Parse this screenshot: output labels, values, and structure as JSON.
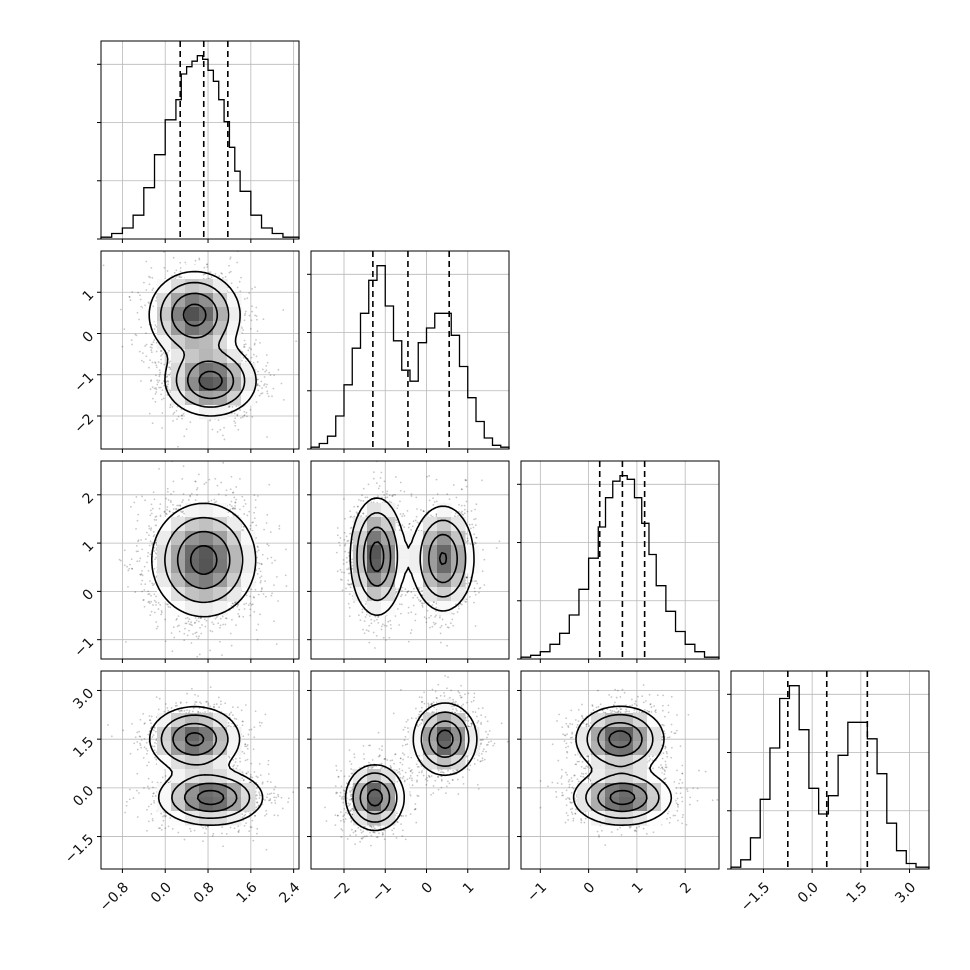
{
  "chart_data": {
    "type": "corner",
    "grid": true,
    "params": [
      {
        "range": [
          -1.2,
          2.5
        ],
        "ticks": [
          -0.8,
          0.0,
          0.8,
          1.6,
          2.4
        ],
        "tick_labels": [
          "−0.8",
          "0.0",
          "0.8",
          "1.6",
          "2.4"
        ],
        "quantiles": [
          0.28,
          0.72,
          1.17
        ],
        "hist": {
          "edges": [
            -1.2,
            -1.0,
            -0.8,
            -0.6,
            -0.4,
            -0.2,
            0.0,
            0.2,
            0.3,
            0.4,
            0.5,
            0.6,
            0.7,
            0.8,
            0.9,
            1.0,
            1.1,
            1.2,
            1.3,
            1.4,
            1.6,
            1.8,
            2.0,
            2.2,
            2.5
          ],
          "values": [
            0.01,
            0.03,
            0.06,
            0.13,
            0.28,
            0.46,
            0.65,
            0.76,
            0.9,
            0.94,
            0.97,
            1.0,
            0.98,
            0.92,
            0.86,
            0.76,
            0.64,
            0.5,
            0.37,
            0.26,
            0.13,
            0.06,
            0.03,
            0.01
          ]
        }
      },
      {
        "range": [
          -2.8,
          2.0
        ],
        "ticks": [
          -2,
          -1,
          0,
          1
        ],
        "tick_labels": [
          "−2",
          "−1",
          "0",
          "1"
        ],
        "quantiles": [
          -1.3,
          -0.45,
          0.55
        ],
        "hist": {
          "edges": [
            -2.8,
            -2.6,
            -2.4,
            -2.2,
            -2.0,
            -1.8,
            -1.6,
            -1.4,
            -1.2,
            -1.0,
            -0.8,
            -0.6,
            -0.4,
            -0.2,
            0.0,
            0.2,
            0.4,
            0.6,
            0.8,
            1.0,
            1.2,
            1.4,
            1.6,
            1.8,
            2.0
          ],
          "values": [
            0.01,
            0.03,
            0.07,
            0.18,
            0.35,
            0.55,
            0.74,
            0.92,
            1.0,
            0.78,
            0.59,
            0.43,
            0.37,
            0.58,
            0.66,
            0.74,
            0.74,
            0.62,
            0.45,
            0.28,
            0.15,
            0.06,
            0.02,
            0.01
          ]
        }
      },
      {
        "range": [
          -1.4,
          2.7
        ],
        "ticks": [
          -1,
          0,
          1,
          2
        ],
        "tick_labels": [
          "−1",
          "0",
          "1",
          "2"
        ],
        "quantiles": [
          0.23,
          0.7,
          1.16
        ],
        "hist": {
          "edges": [
            -1.4,
            -1.2,
            -1.0,
            -0.8,
            -0.6,
            -0.4,
            -0.2,
            0.0,
            0.2,
            0.35,
            0.5,
            0.65,
            0.8,
            0.95,
            1.1,
            1.25,
            1.4,
            1.6,
            1.8,
            2.0,
            2.2,
            2.4,
            2.7
          ],
          "values": [
            0.01,
            0.02,
            0.04,
            0.08,
            0.14,
            0.24,
            0.38,
            0.55,
            0.72,
            0.88,
            0.97,
            1.0,
            0.98,
            0.88,
            0.74,
            0.57,
            0.4,
            0.26,
            0.15,
            0.08,
            0.04,
            0.01
          ]
        }
      },
      {
        "range": [
          -2.5,
          3.6
        ],
        "ticks": [
          -1.5,
          0.0,
          1.5,
          3.0
        ],
        "tick_labels": [
          "−1.5",
          "0.0",
          "1.5",
          "3.0"
        ],
        "quantiles": [
          -0.75,
          0.45,
          1.7
        ],
        "hist": {
          "edges": [
            -2.5,
            -2.2,
            -1.9,
            -1.6,
            -1.3,
            -1.0,
            -0.7,
            -0.4,
            -0.1,
            0.2,
            0.5,
            0.8,
            1.1,
            1.4,
            1.7,
            2.0,
            2.3,
            2.6,
            2.9,
            3.2,
            3.6
          ],
          "values": [
            0.01,
            0.05,
            0.17,
            0.38,
            0.66,
            0.93,
            1.0,
            0.76,
            0.44,
            0.3,
            0.4,
            0.62,
            0.8,
            0.8,
            0.71,
            0.52,
            0.25,
            0.1,
            0.03,
            0.01
          ]
        }
      }
    ],
    "pairs": [
      {
        "x": 0,
        "y": 1,
        "modes": [
          {
            "mx": 0.55,
            "my": 0.45,
            "sx": 0.42,
            "sy": 0.52,
            "w": 1.0
          },
          {
            "mx": 0.85,
            "my": -1.15,
            "sx": 0.42,
            "sy": 0.42,
            "w": 1.0
          }
        ]
      },
      {
        "x": 0,
        "y": 2,
        "modes": [
          {
            "mx": 0.72,
            "my": 0.65,
            "sx": 0.48,
            "sy": 0.58,
            "w": 1.0
          }
        ]
      },
      {
        "x": 1,
        "y": 2,
        "modes": [
          {
            "mx": -1.2,
            "my": 0.72,
            "sx": 0.32,
            "sy": 0.6,
            "w": 1.0
          },
          {
            "mx": 0.4,
            "my": 0.68,
            "sx": 0.38,
            "sy": 0.55,
            "w": 0.9
          }
        ]
      },
      {
        "x": 0,
        "y": 3,
        "modes": [
          {
            "mx": 0.55,
            "my": 1.5,
            "sx": 0.42,
            "sy": 0.5,
            "w": 1.0
          },
          {
            "mx": 0.85,
            "my": -0.3,
            "sx": 0.48,
            "sy": 0.42,
            "w": 1.05
          }
        ]
      },
      {
        "x": 1,
        "y": 3,
        "modes": [
          {
            "mx": -1.25,
            "my": -0.3,
            "sx": 0.35,
            "sy": 0.5,
            "w": 1.0
          },
          {
            "mx": 0.45,
            "my": 1.5,
            "sx": 0.38,
            "sy": 0.55,
            "w": 1.0
          }
        ]
      },
      {
        "x": 2,
        "y": 3,
        "modes": [
          {
            "mx": 0.65,
            "my": 1.5,
            "sx": 0.45,
            "sy": 0.5,
            "w": 1.0
          },
          {
            "mx": 0.7,
            "my": -0.3,
            "sx": 0.5,
            "sy": 0.42,
            "w": 1.0
          }
        ]
      }
    ]
  }
}
